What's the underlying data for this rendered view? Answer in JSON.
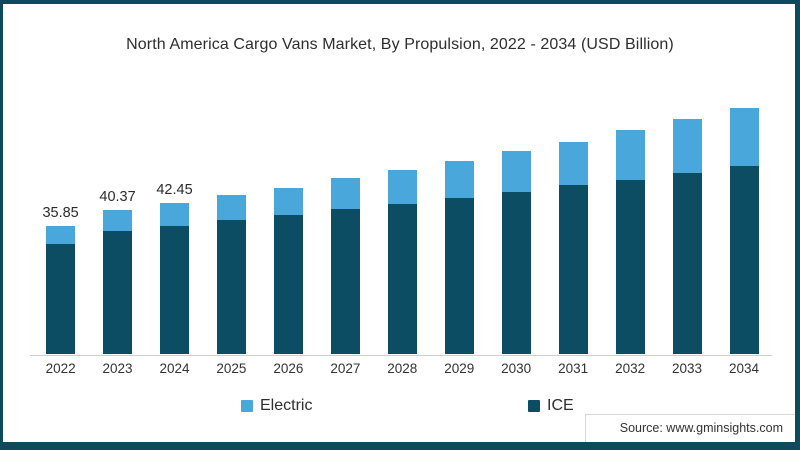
{
  "page": {
    "title": "North America Cargo Vans Market, By Propulsion, 2022 - 2034 (USD Billion)",
    "source_text": "Source: www.gminsights.com",
    "frame_color": "#0E4A5E",
    "background_color": "#FFFFFF"
  },
  "legend": {
    "items": [
      {
        "label": "Electric",
        "color": "#49A7DB"
      },
      {
        "label": "ICE",
        "color": "#0D4D63"
      }
    ]
  },
  "chart_data": {
    "type": "bar",
    "stacked": true,
    "title": "North America Cargo Vans Market, By Propulsion, 2022 - 2034 (USD Billion)",
    "unit": "USD Billion",
    "categories": [
      "2022",
      "2023",
      "2024",
      "2025",
      "2026",
      "2027",
      "2028",
      "2029",
      "2030",
      "2031",
      "2032",
      "2033",
      "2034"
    ],
    "series": [
      {
        "name": "Electric",
        "color": "#49A7DB",
        "values": [
          4.95,
          5.87,
          6.55,
          7.0,
          7.8,
          8.7,
          9.3,
          10.4,
          11.4,
          12.2,
          13.9,
          15.1,
          16.4
        ]
      },
      {
        "name": "ICE",
        "color": "#0D4D63",
        "values": [
          30.9,
          34.5,
          35.9,
          37.5,
          38.9,
          40.6,
          42.2,
          43.7,
          45.5,
          47.4,
          48.9,
          50.8,
          52.7
        ]
      }
    ],
    "stack_order_bottom_to_top": [
      "ICE",
      "Electric"
    ],
    "totals": [
      35.85,
      40.37,
      42.45,
      44.5,
      46.7,
      49.3,
      51.5,
      54.1,
      56.9,
      59.6,
      62.8,
      65.9,
      69.1
    ],
    "total_labels": [
      "35.85",
      "40.37",
      "42.45",
      null,
      null,
      null,
      null,
      null,
      null,
      null,
      null,
      null,
      null
    ],
    "xlabel": "",
    "ylabel": "",
    "ylim": [
      0,
      75
    ],
    "grid": false,
    "legend_position": "bottom"
  }
}
